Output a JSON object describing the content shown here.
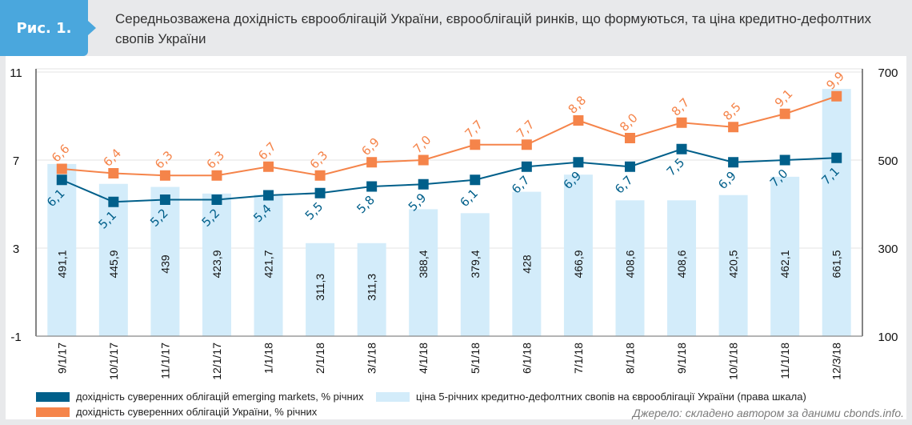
{
  "figure": {
    "tag": "Рис. 1.",
    "title": "Середньозважена дохідність єврооблігацій України, єврооблігацій ринків, що формуються, та ціна кредитно-дефолтних свопів України",
    "source": "Джерело: складено автором за даними cbonds.info."
  },
  "chart_data": {
    "type": "bar",
    "title": "Середньозважена дохідність єврооблігацій України, єврооблігацій ринків, що формуються, та ціна кредитно-дефолтних свопів України",
    "categories": [
      "9/1/17",
      "10/1/17",
      "11/1/17",
      "12/1/17",
      "1/1/18",
      "2/1/18",
      "3/1/18",
      "4/1/18",
      "5/1/18",
      "6/1/18",
      "7/1/18",
      "8/1/18",
      "9/1/18",
      "10/1/18",
      "11/1/18",
      "12/3/18"
    ],
    "left_axis": {
      "ylim": [
        -1,
        11
      ],
      "ticks": [
        "-1",
        "3",
        "7",
        "11"
      ],
      "tick_values": [
        -1,
        3,
        7,
        11
      ]
    },
    "right_axis": {
      "ylim": [
        100,
        700
      ],
      "ticks": [
        "100",
        "300",
        "500",
        "700"
      ],
      "tick_values": [
        100,
        300,
        500,
        700
      ]
    },
    "grid": true,
    "legend_position": "bottom",
    "series": [
      {
        "name": "ціна 5-річних кредитно-дефолтних свопів на єврооблігації України (права шкала)",
        "type": "bar",
        "axis": "right",
        "color": "#d3ecfa",
        "values": [
          491.1,
          445.9,
          439,
          423.9,
          421.7,
          311.3,
          311.3,
          388.4,
          379.4,
          428,
          466.9,
          408.6,
          408.6,
          420.5,
          462.1,
          661.5
        ],
        "labels": [
          "491,1",
          "445,9",
          "439",
          "423,9",
          "421,7",
          "311,3",
          "311,3",
          "388,4",
          "379,4",
          "428",
          "466,9",
          "408,6",
          "408,6",
          "420,5",
          "462,1",
          "661,5"
        ]
      },
      {
        "name": "дохідність суверенних облігацій  emerging markets, % річних",
        "type": "line",
        "axis": "left",
        "color": "#005f8a",
        "values": [
          6.1,
          5.1,
          5.2,
          5.2,
          5.4,
          5.5,
          5.8,
          5.9,
          6.1,
          6.7,
          6.9,
          6.7,
          7.5,
          6.9,
          7.0,
          7.1
        ],
        "labels": [
          "6,1",
          "5,1",
          "5,2",
          "5,2",
          "5,4",
          "5,5",
          "5,8",
          "5,9",
          "6,1",
          "6,7",
          "6,9",
          "6,7",
          "7,5",
          "6,9",
          "7,0",
          "7,1"
        ]
      },
      {
        "name": "дохідність суверенних облігацій України, % річних",
        "type": "line",
        "axis": "left",
        "color": "#f5844a",
        "values": [
          6.6,
          6.4,
          6.3,
          6.3,
          6.7,
          6.3,
          6.9,
          7.0,
          7.7,
          7.7,
          8.8,
          8.0,
          8.7,
          8.5,
          9.1,
          9.9
        ],
        "labels": [
          "6,6",
          "6,4",
          "6,3",
          "6,3",
          "6,7",
          "6,3",
          "6,9",
          "7,0",
          "7,7",
          "7,7",
          "8,8",
          "8,0",
          "8,7",
          "8,5",
          "9,1",
          "9,9"
        ]
      }
    ]
  },
  "legend": {
    "em_label": "дохідність суверенних облігацій  emerging markets, % річних",
    "ua_label": "дохідність суверенних облігацій України, % річних",
    "cds_label": "ціна 5-річних кредитно-дефолтних свопів на єврооблігації України (права шкала)"
  },
  "colors": {
    "accent": "#4aa7dd",
    "em": "#005f8a",
    "ua": "#f5844a",
    "cds": "#d3ecfa"
  }
}
